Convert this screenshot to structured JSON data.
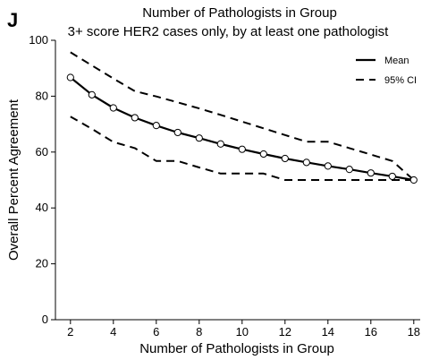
{
  "panel_letter": "J",
  "chart_data": {
    "type": "line",
    "title": "Number of Pathologists in Group",
    "subtitle": "3+ score HER2 cases only, by at least one pathologist",
    "xlabel": "Number of Pathologists in Group",
    "ylabel": "Overall Percent Agreement",
    "xlim": [
      1.3,
      18.3
    ],
    "ylim": [
      0,
      100
    ],
    "xticks": [
      2,
      4,
      6,
      8,
      10,
      12,
      14,
      16,
      18
    ],
    "yticks": [
      0,
      20,
      40,
      60,
      80,
      100
    ],
    "x": [
      2,
      3,
      4,
      5,
      6,
      7,
      8,
      9,
      10,
      11,
      12,
      13,
      14,
      15,
      16,
      17,
      18
    ],
    "series": [
      {
        "name": "Mean",
        "style": "solid",
        "markers": true,
        "values": [
          86.7,
          80.5,
          75.8,
          72.3,
          69.5,
          67,
          65,
          62.9,
          61,
          59.3,
          57.7,
          56.3,
          55,
          53.8,
          52.5,
          51.3,
          50
        ]
      },
      {
        "name": "95% CI",
        "style": "dashed",
        "markers": false,
        "values": [
          95.7,
          91,
          86.3,
          81.8,
          79.9,
          77.8,
          75.6,
          73.3,
          70.9,
          68.5,
          66.1,
          63.7,
          63.7,
          61.4,
          59.1,
          56.8,
          50
        ]
      },
      {
        "name": "95% CI lower",
        "style": "dashed",
        "markers": false,
        "legend": false,
        "values": [
          72.7,
          68.3,
          63.6,
          61.4,
          56.8,
          56.8,
          54.5,
          52.3,
          52.3,
          52.3,
          50,
          50,
          50,
          50,
          50,
          50,
          50
        ]
      }
    ],
    "legend": {
      "position": "top-right",
      "entries": [
        "Mean",
        "95% CI"
      ]
    },
    "grid": false,
    "colors": {
      "line": "#000000",
      "marker_fill": "#ffffff",
      "background": "#ffffff"
    }
  }
}
